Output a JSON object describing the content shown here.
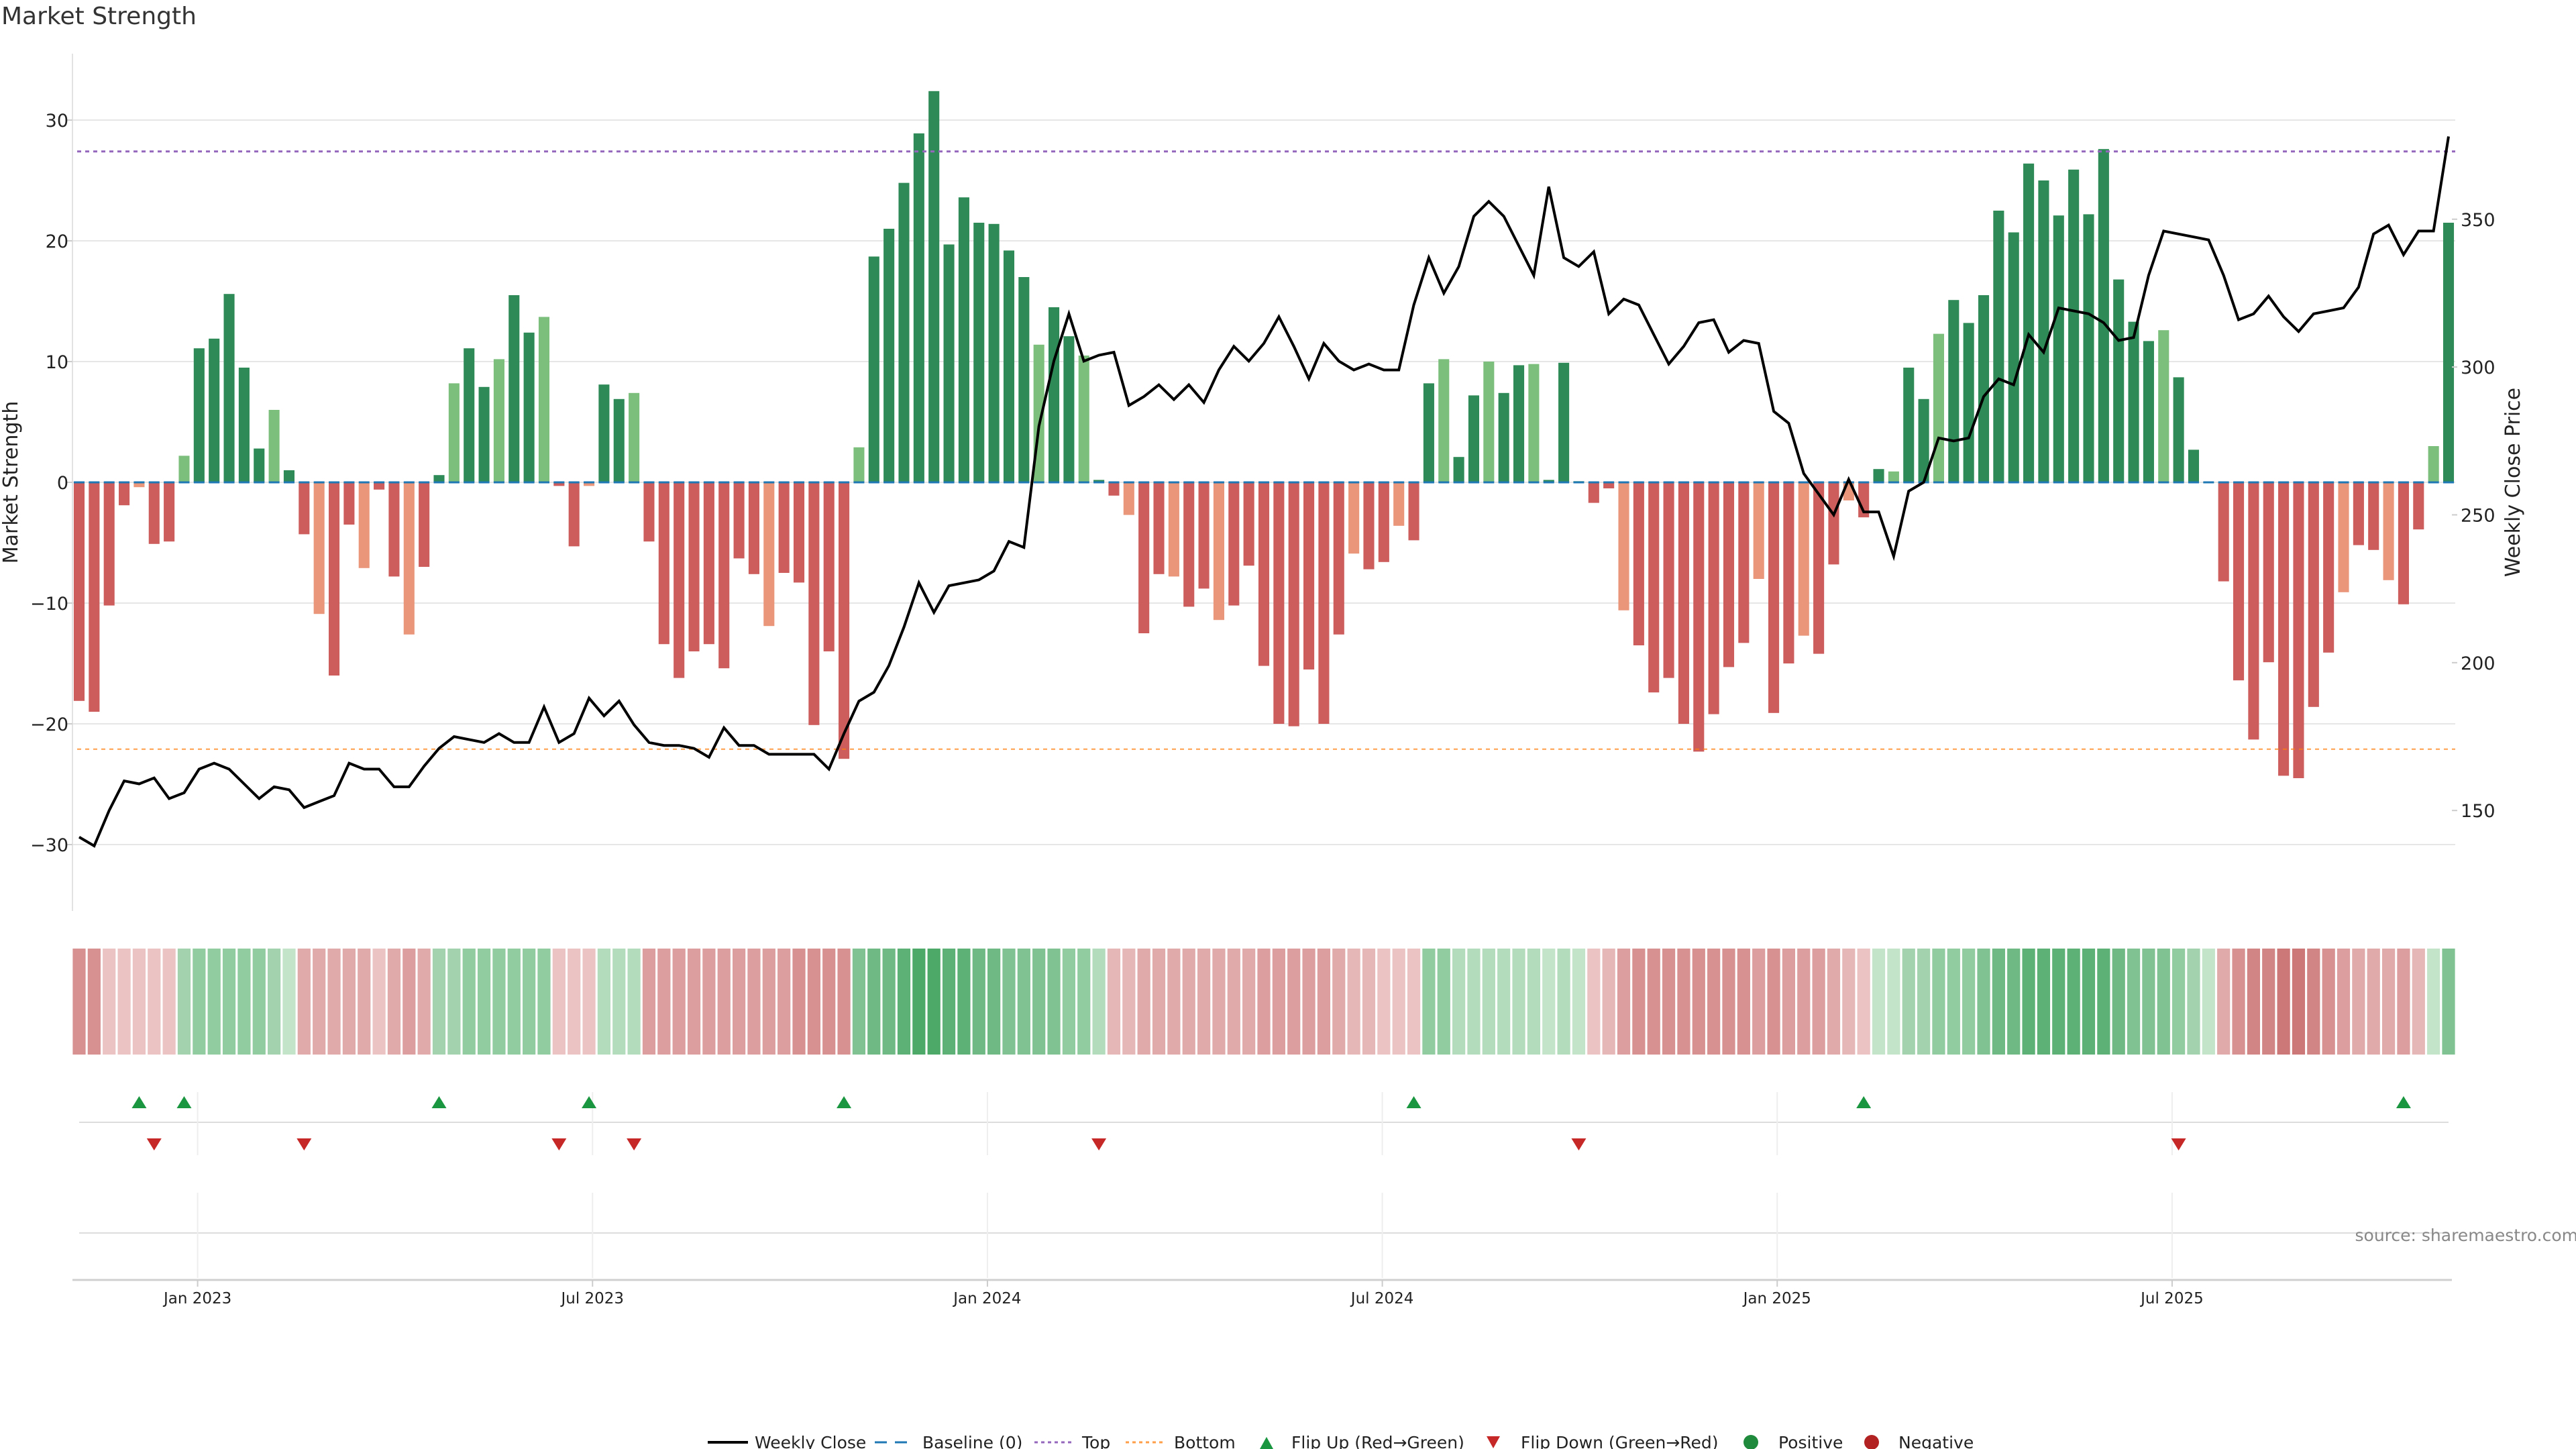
{
  "header": {
    "title": "Market Strength"
  },
  "colors": {
    "pos_strong": "#2e8b57",
    "pos_weak": "#7cbf7c",
    "neg_strong": "#cd5c5c",
    "neg_weak": "#e9967a",
    "price": "#000000",
    "baseline": "#1f77b4",
    "top": "#9467bd",
    "bottom": "#ff7f0e",
    "flip_up": "#1a9641",
    "flip_down": "#c62828",
    "grid": "#e6e6e6",
    "axis_text": "#222222",
    "source": "#888888"
  },
  "chart_data": {
    "type": "bar",
    "title": "Market Strength",
    "ylabel": "Market Strength",
    "y2label": "Weekly Close Price",
    "ylim": [
      -35.5,
      35.5
    ],
    "y2lim": [
      116,
      406
    ],
    "yticks": [
      -30,
      -20,
      -10,
      0,
      10,
      20,
      30
    ],
    "y2ticks": [
      150,
      200,
      250,
      300,
      350
    ],
    "ytick_labels": [
      "−30",
      "−20",
      "−10",
      "0",
      "10",
      "20",
      "30"
    ],
    "y2tick_labels": [
      "150",
      "200",
      "250",
      "300",
      "350"
    ],
    "top_line": 27.4,
    "bottom_line": -22.1,
    "x_start_month": 2022.85,
    "x_end_month": 2025.85,
    "xticks": [
      {
        "label": "Jan 2023",
        "month": 2023.0
      },
      {
        "label": "Jul 2023",
        "month": 2023.5
      },
      {
        "label": "Jan 2024",
        "month": 2024.0
      },
      {
        "label": "Jul 2024",
        "month": 2024.5
      },
      {
        "label": "Jan 2025",
        "month": 2025.0
      },
      {
        "label": "Jul 2025",
        "month": 2025.5
      }
    ],
    "strength": [
      -18.1,
      -19.0,
      -10.2,
      -1.9,
      -0.4,
      -5.1,
      -4.9,
      2.2,
      11.1,
      11.9,
      15.6,
      9.5,
      2.8,
      6.0,
      1.0,
      -4.3,
      -10.9,
      -16.0,
      -3.5,
      -7.1,
      -0.6,
      -7.8,
      -12.6,
      -7.0,
      0.6,
      8.2,
      11.1,
      7.9,
      10.2,
      15.5,
      12.4,
      13.7,
      -0.3,
      -5.3,
      -0.3,
      8.1,
      6.9,
      7.4,
      -4.9,
      -13.4,
      -16.2,
      -14.0,
      -13.4,
      -15.4,
      -6.3,
      -7.6,
      -11.9,
      -7.5,
      -8.3,
      -20.1,
      -14.0,
      -22.9,
      2.9,
      18.7,
      21.0,
      24.8,
      28.9,
      32.4,
      19.7,
      23.6,
      21.5,
      21.4,
      19.2,
      17.0,
      11.4,
      14.5,
      12.1,
      10.5,
      0.2,
      -1.1,
      -2.7,
      -12.5,
      -7.6,
      -7.8,
      -10.3,
      -8.8,
      -11.4,
      -10.2,
      -6.9,
      -15.2,
      -20.0,
      -20.2,
      -15.5,
      -20.0,
      -12.6,
      -5.9,
      -7.2,
      -6.6,
      -3.6,
      -4.8,
      8.2,
      10.2,
      2.1,
      7.2,
      10.0,
      7.4,
      9.7,
      9.8,
      0.2,
      9.9,
      0.1,
      -1.7,
      -0.5,
      -10.6,
      -13.5,
      -17.4,
      -16.2,
      -20.0,
      -22.3,
      -19.2,
      -15.3,
      -13.3,
      -8.0,
      -19.1,
      -15.0,
      -12.7,
      -14.2,
      -6.8,
      -1.5,
      -2.9,
      1.1,
      0.9,
      9.5,
      6.9,
      12.3,
      15.1,
      13.2,
      15.5,
      22.5,
      20.7,
      26.4,
      25.0,
      22.1,
      25.9,
      22.2,
      27.6,
      16.8,
      13.3,
      11.7,
      12.6,
      8.7,
      2.7,
      0.0,
      -8.2,
      -16.4,
      -21.3,
      -14.9,
      -24.3,
      -24.5,
      -18.6,
      -14.1,
      -9.1,
      -5.2,
      -5.6,
      -8.1,
      -10.1,
      -3.9,
      3.0,
      21.5
    ],
    "price": [
      141,
      138,
      150,
      160,
      159,
      161,
      154,
      156,
      164,
      166,
      164,
      159,
      154,
      158,
      157,
      151,
      153,
      155,
      166,
      164,
      164,
      158,
      158,
      165,
      171,
      175,
      174,
      173,
      176,
      173,
      173,
      185,
      173,
      176,
      188,
      182,
      187,
      179,
      173,
      172,
      172,
      171,
      168,
      178,
      172,
      172,
      169,
      169,
      169,
      169,
      164,
      176,
      187,
      190,
      199,
      212,
      227,
      217,
      226,
      227,
      228,
      231,
      241,
      239,
      280,
      302,
      318,
      302,
      304,
      305,
      287,
      290,
      294,
      289,
      294,
      288,
      299,
      307,
      302,
      308,
      317,
      307,
      296,
      308,
      302,
      299,
      301,
      299,
      299,
      321,
      337,
      325,
      334,
      351,
      356,
      351,
      341,
      331,
      361,
      337,
      334,
      339,
      318,
      323,
      321,
      311,
      301,
      307,
      315,
      316,
      305,
      309,
      308,
      285,
      281,
      264,
      257,
      250,
      262,
      251,
      251,
      236,
      258,
      261,
      276,
      275,
      276,
      290,
      296,
      294,
      311,
      305,
      320,
      319,
      318,
      315,
      309,
      310,
      331,
      346,
      345,
      344,
      343,
      331,
      316,
      318,
      324,
      317,
      312,
      318,
      319,
      320,
      327,
      345,
      348,
      338,
      346,
      346,
      378
    ],
    "strip_intensity": [
      0.6,
      0.6,
      0.2,
      0.2,
      0.2,
      0.2,
      0.2,
      0.4,
      0.5,
      0.5,
      0.5,
      0.5,
      0.5,
      0.4,
      0.2,
      0.4,
      0.4,
      0.4,
      0.4,
      0.4,
      0.2,
      0.4,
      0.5,
      0.4,
      0.4,
      0.4,
      0.5,
      0.5,
      0.5,
      0.5,
      0.5,
      0.5,
      0.2,
      0.2,
      0.2,
      0.3,
      0.3,
      0.3,
      0.5,
      0.5,
      0.5,
      0.5,
      0.5,
      0.5,
      0.5,
      0.5,
      0.5,
      0.5,
      0.6,
      0.6,
      0.6,
      0.6,
      0.6,
      0.7,
      0.7,
      0.8,
      0.9,
      0.9,
      0.8,
      0.8,
      0.7,
      0.7,
      0.6,
      0.6,
      0.6,
      0.6,
      0.5,
      0.5,
      0.3,
      0.3,
      0.3,
      0.4,
      0.4,
      0.4,
      0.4,
      0.4,
      0.4,
      0.4,
      0.4,
      0.5,
      0.5,
      0.5,
      0.5,
      0.5,
      0.4,
      0.3,
      0.3,
      0.2,
      0.2,
      0.2,
      0.5,
      0.5,
      0.3,
      0.3,
      0.3,
      0.3,
      0.3,
      0.3,
      0.2,
      0.3,
      0.2,
      0.2,
      0.3,
      0.5,
      0.6,
      0.6,
      0.6,
      0.6,
      0.6,
      0.6,
      0.6,
      0.6,
      0.5,
      0.6,
      0.5,
      0.5,
      0.5,
      0.4,
      0.3,
      0.2,
      0.2,
      0.2,
      0.4,
      0.4,
      0.5,
      0.5,
      0.5,
      0.6,
      0.7,
      0.7,
      0.8,
      0.8,
      0.8,
      0.8,
      0.8,
      0.8,
      0.7,
      0.6,
      0.6,
      0.6,
      0.5,
      0.4,
      0.2,
      0.4,
      0.6,
      0.7,
      0.7,
      0.8,
      0.8,
      0.7,
      0.6,
      0.5,
      0.4,
      0.4,
      0.4,
      0.5,
      0.3,
      0.2,
      0.6
    ],
    "flip_up_idx": [
      4,
      7,
      24,
      34,
      51,
      89,
      119,
      155
    ],
    "flip_down_idx": [
      5,
      15,
      32,
      37,
      68,
      100,
      140
    ]
  },
  "legend": {
    "weekly_close": "Weekly Close",
    "baseline": "Baseline (0)",
    "top": "Top",
    "bottom": "Bottom",
    "flip_up": "Flip Up (Red→Green)",
    "flip_down": "Flip Down (Green→Red)",
    "positive": "Positive",
    "negative": "Negative"
  },
  "source": "source: sharemaestro.com"
}
